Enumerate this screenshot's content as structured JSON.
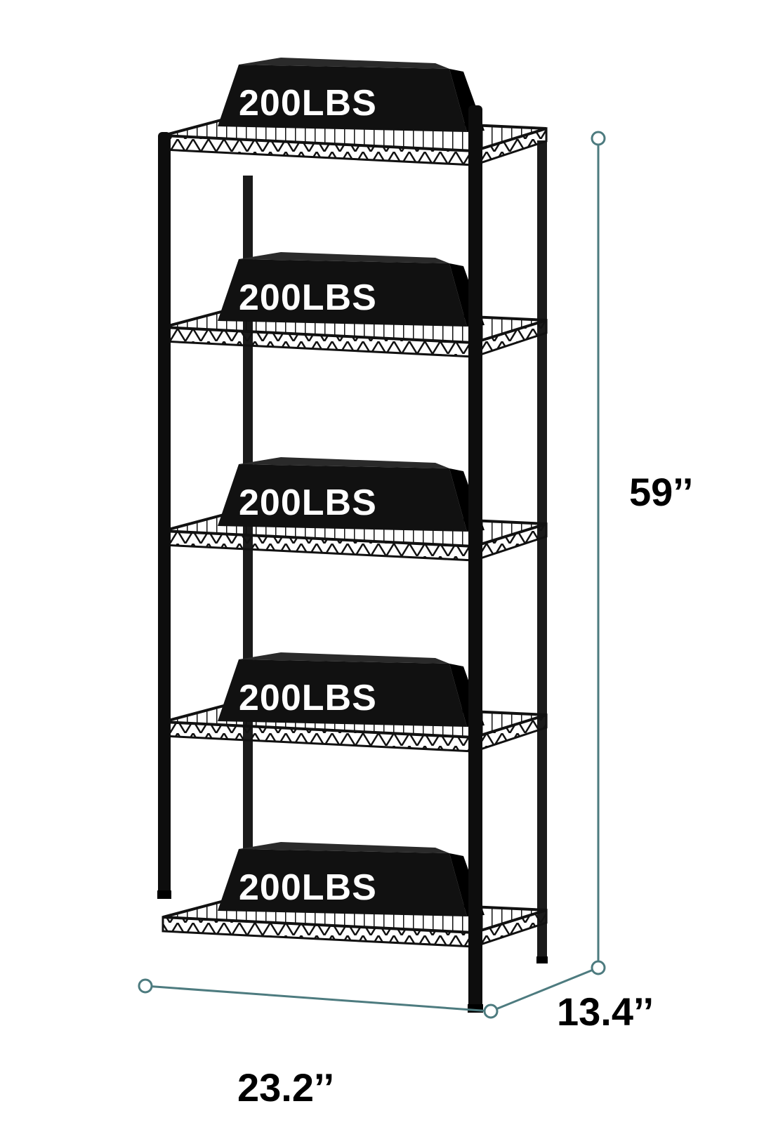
{
  "product": {
    "shelves": [
      {
        "load_label": "200LBS"
      },
      {
        "load_label": "200LBS"
      },
      {
        "load_label": "200LBS"
      },
      {
        "load_label": "200LBS"
      },
      {
        "load_label": "200LBS"
      }
    ]
  },
  "dimensions": {
    "height": "59’’",
    "width": "23.2’’",
    "depth": "13.4’’"
  },
  "colors": {
    "rack": "#111111",
    "dimension_line": "#4d7b7f",
    "background": "#ffffff"
  }
}
